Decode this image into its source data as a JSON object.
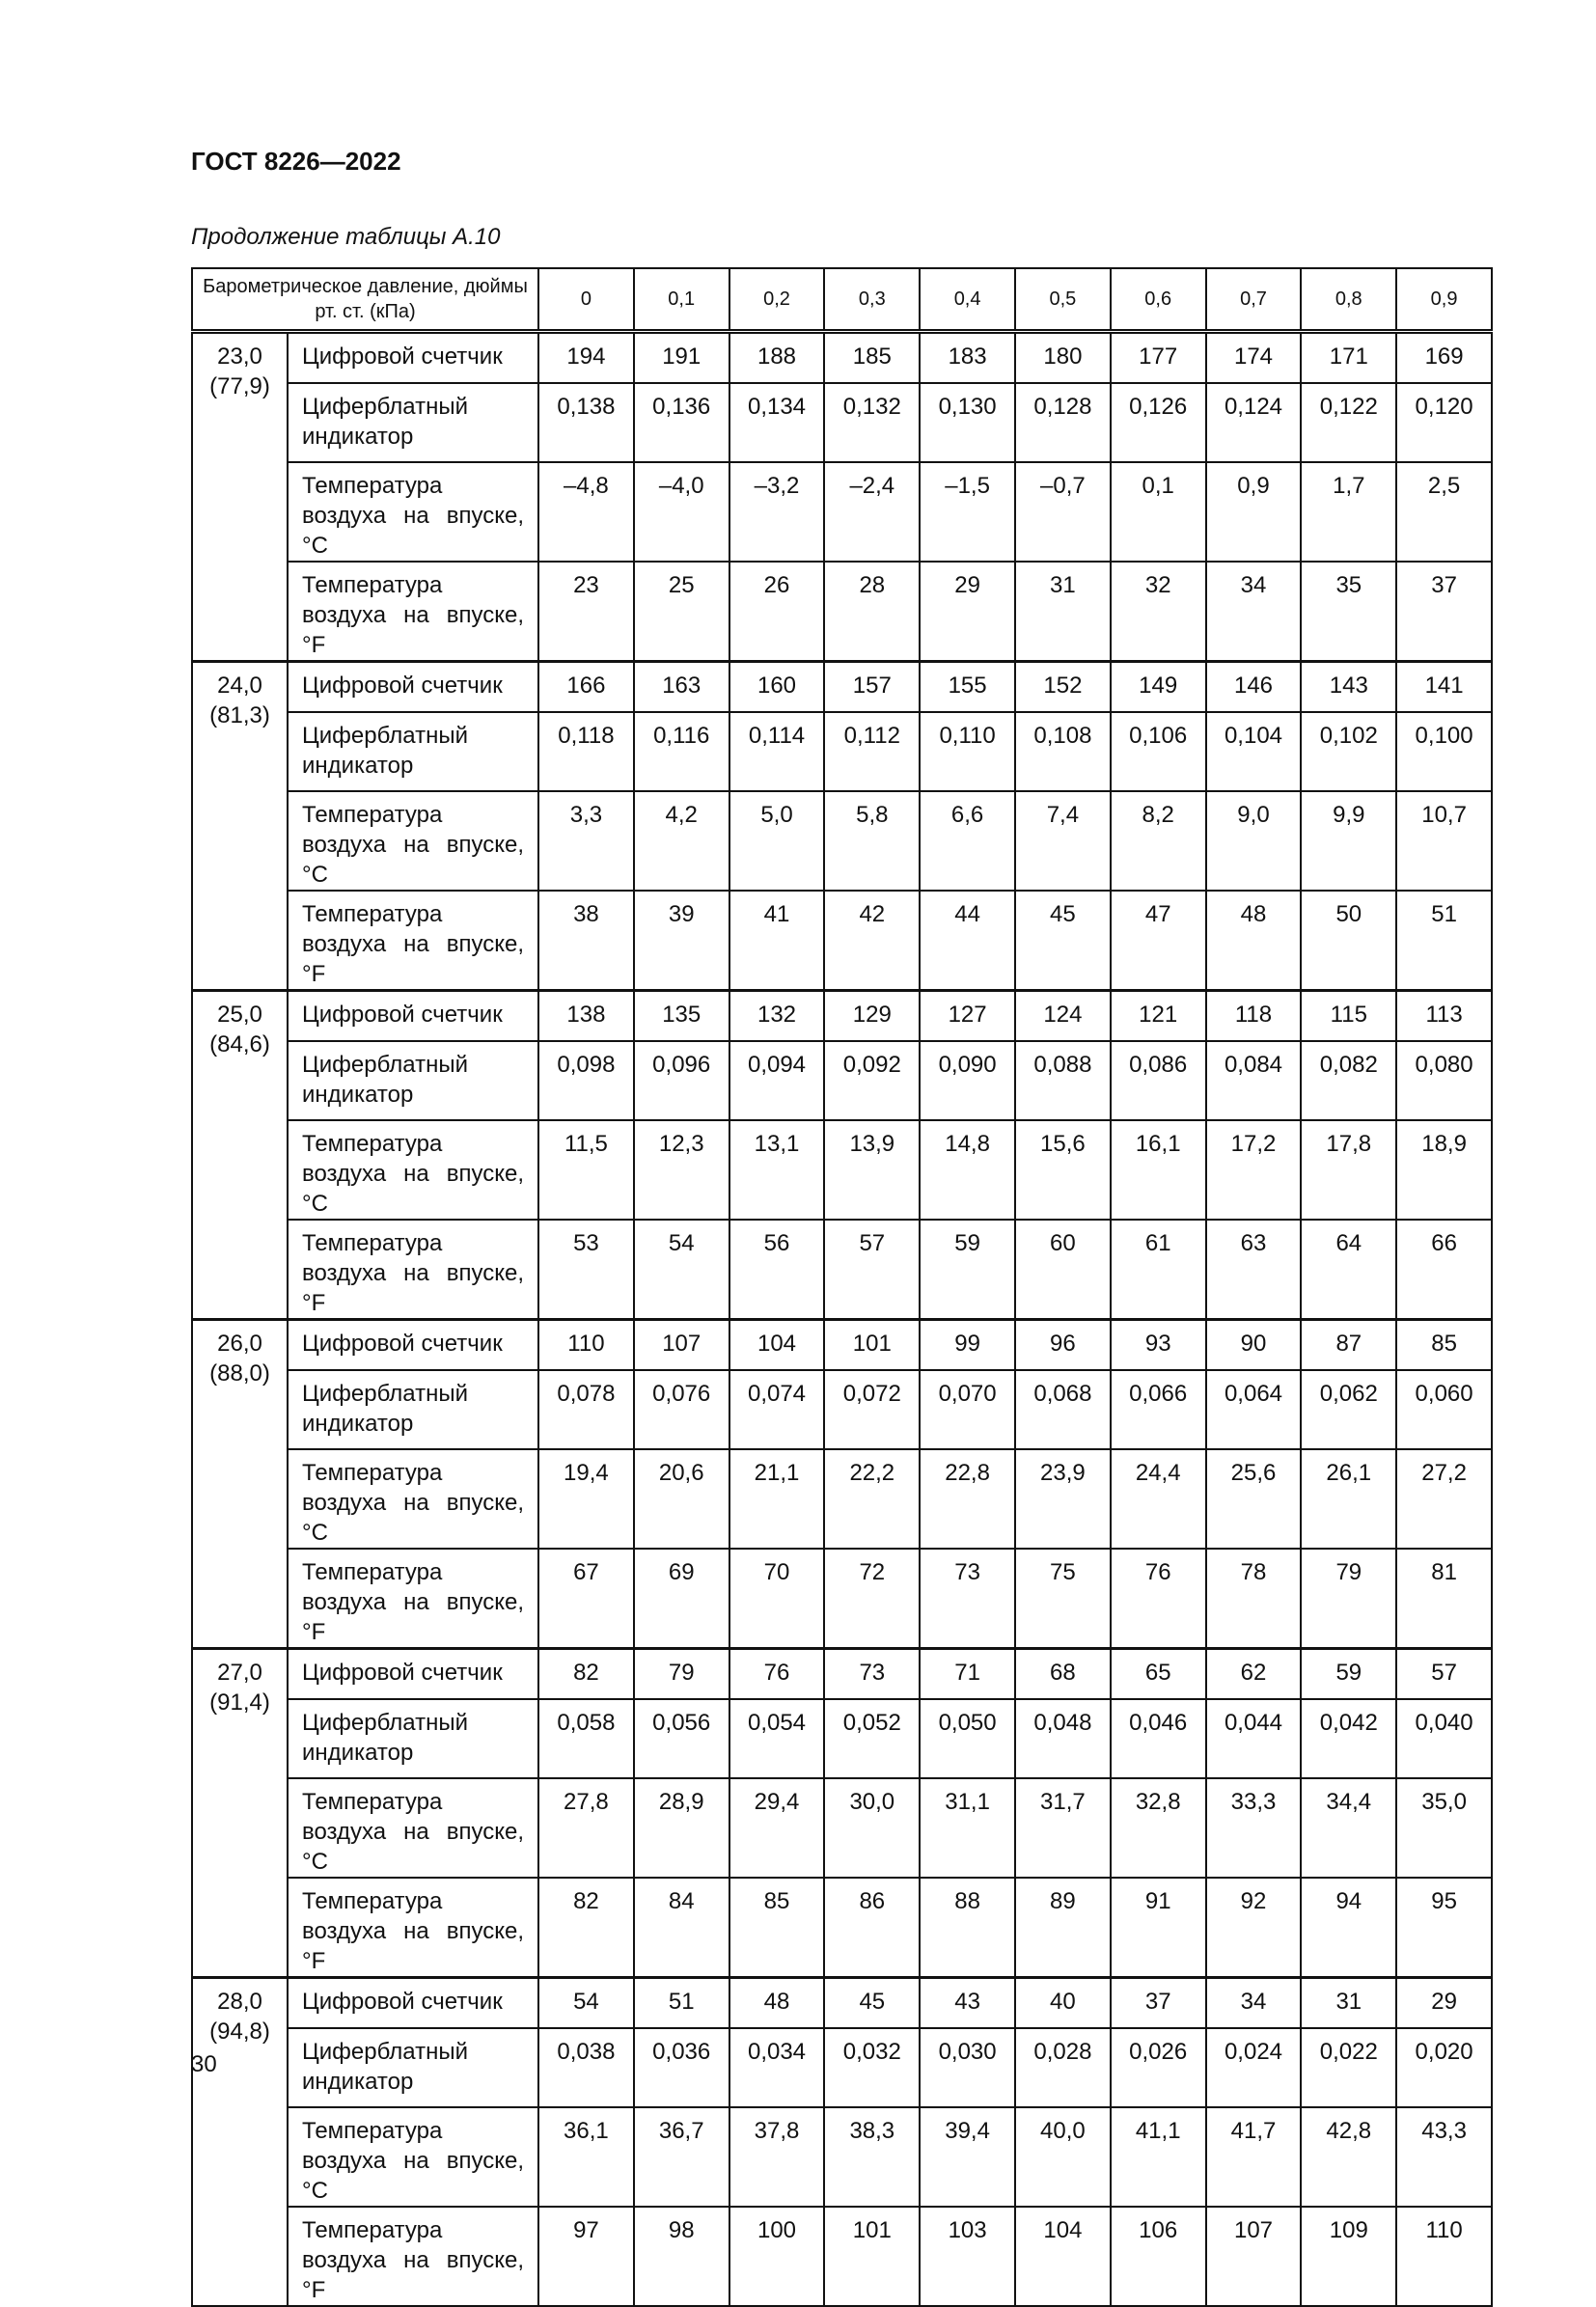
{
  "header": {
    "doc_title": "ГОСТ 8226—2022",
    "caption": "Продолжение таблицы А.10"
  },
  "table": {
    "corner_header": "Барометрическое давление, дюймы рт. ст. (кПа)",
    "columns": [
      "0",
      "0,1",
      "0,2",
      "0,3",
      "0,4",
      "0,5",
      "0,6",
      "0,7",
      "0,8",
      "0,9"
    ],
    "row_labels": [
      "Цифровой счетчик",
      "Циферблатный индикатор",
      "Температура воздуха на впуске, °C",
      "Температура воздуха на впуске, °F"
    ],
    "groups": [
      {
        "pressure": "23,0 (77,9)",
        "rows": [
          [
            "194",
            "191",
            "188",
            "185",
            "183",
            "180",
            "177",
            "174",
            "171",
            "169"
          ],
          [
            "0,138",
            "0,136",
            "0,134",
            "0,132",
            "0,130",
            "0,128",
            "0,126",
            "0,124",
            "0,122",
            "0,120"
          ],
          [
            "–4,8",
            "–4,0",
            "–3,2",
            "–2,4",
            "–1,5",
            "–0,7",
            "0,1",
            "0,9",
            "1,7",
            "2,5"
          ],
          [
            "23",
            "25",
            "26",
            "28",
            "29",
            "31",
            "32",
            "34",
            "35",
            "37"
          ]
        ]
      },
      {
        "pressure": "24,0 (81,3)",
        "rows": [
          [
            "166",
            "163",
            "160",
            "157",
            "155",
            "152",
            "149",
            "146",
            "143",
            "141"
          ],
          [
            "0,118",
            "0,116",
            "0,114",
            "0,112",
            "0,110",
            "0,108",
            "0,106",
            "0,104",
            "0,102",
            "0,100"
          ],
          [
            "3,3",
            "4,2",
            "5,0",
            "5,8",
            "6,6",
            "7,4",
            "8,2",
            "9,0",
            "9,9",
            "10,7"
          ],
          [
            "38",
            "39",
            "41",
            "42",
            "44",
            "45",
            "47",
            "48",
            "50",
            "51"
          ]
        ]
      },
      {
        "pressure": "25,0 (84,6)",
        "rows": [
          [
            "138",
            "135",
            "132",
            "129",
            "127",
            "124",
            "121",
            "118",
            "115",
            "113"
          ],
          [
            "0,098",
            "0,096",
            "0,094",
            "0,092",
            "0,090",
            "0,088",
            "0,086",
            "0,084",
            "0,082",
            "0,080"
          ],
          [
            "11,5",
            "12,3",
            "13,1",
            "13,9",
            "14,8",
            "15,6",
            "16,1",
            "17,2",
            "17,8",
            "18,9"
          ],
          [
            "53",
            "54",
            "56",
            "57",
            "59",
            "60",
            "61",
            "63",
            "64",
            "66"
          ]
        ]
      },
      {
        "pressure": "26,0 (88,0)",
        "rows": [
          [
            "110",
            "107",
            "104",
            "101",
            "99",
            "96",
            "93",
            "90",
            "87",
            "85"
          ],
          [
            "0,078",
            "0,076",
            "0,074",
            "0,072",
            "0,070",
            "0,068",
            "0,066",
            "0,064",
            "0,062",
            "0,060"
          ],
          [
            "19,4",
            "20,6",
            "21,1",
            "22,2",
            "22,8",
            "23,9",
            "24,4",
            "25,6",
            "26,1",
            "27,2"
          ],
          [
            "67",
            "69",
            "70",
            "72",
            "73",
            "75",
            "76",
            "78",
            "79",
            "81"
          ]
        ]
      },
      {
        "pressure": "27,0 (91,4)",
        "rows": [
          [
            "82",
            "79",
            "76",
            "73",
            "71",
            "68",
            "65",
            "62",
            "59",
            "57"
          ],
          [
            "0,058",
            "0,056",
            "0,054",
            "0,052",
            "0,050",
            "0,048",
            "0,046",
            "0,044",
            "0,042",
            "0,040"
          ],
          [
            "27,8",
            "28,9",
            "29,4",
            "30,0",
            "31,1",
            "31,7",
            "32,8",
            "33,3",
            "34,4",
            "35,0"
          ],
          [
            "82",
            "84",
            "85",
            "86",
            "88",
            "89",
            "91",
            "92",
            "94",
            "95"
          ]
        ]
      },
      {
        "pressure": "28,0 (94,8)",
        "rows": [
          [
            "54",
            "51",
            "48",
            "45",
            "43",
            "40",
            "37",
            "34",
            "31",
            "29"
          ],
          [
            "0,038",
            "0,036",
            "0,034",
            "0,032",
            "0,030",
            "0,028",
            "0,026",
            "0,024",
            "0,022",
            "0,020"
          ],
          [
            "36,1",
            "36,7",
            "37,8",
            "38,3",
            "39,4",
            "40,0",
            "41,1",
            "41,7",
            "42,8",
            "43,3"
          ],
          [
            "97",
            "98",
            "100",
            "101",
            "103",
            "104",
            "106",
            "107",
            "109",
            "110"
          ]
        ]
      }
    ]
  },
  "footer": {
    "page_number": "30"
  }
}
